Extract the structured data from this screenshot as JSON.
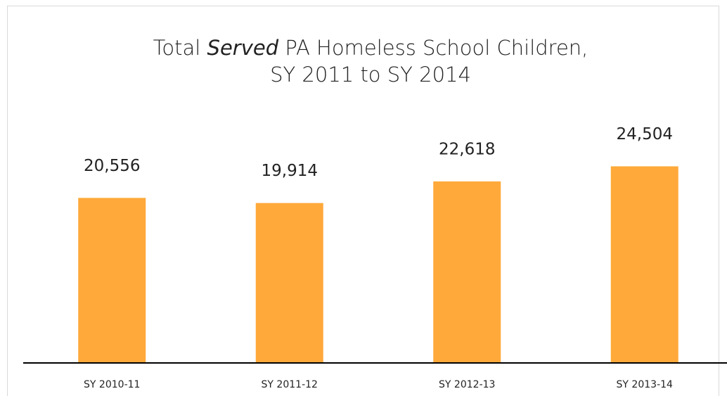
{
  "chart_data": {
    "type": "bar",
    "title": [
      "Total",
      "Served",
      "PA Homeless School Children,",
      "SY 2011 to SY 2014"
    ],
    "categories": [
      "SY 2010-11",
      "SY 2011-12",
      "SY 2012-13",
      "SY 2013-14"
    ],
    "values": [
      20556,
      19914,
      22618,
      24504
    ],
    "value_labels": [
      "20,556",
      "19,914",
      "22,618",
      "24,504"
    ],
    "color": "#ffa93a",
    "ylim": [
      0,
      30000
    ]
  }
}
